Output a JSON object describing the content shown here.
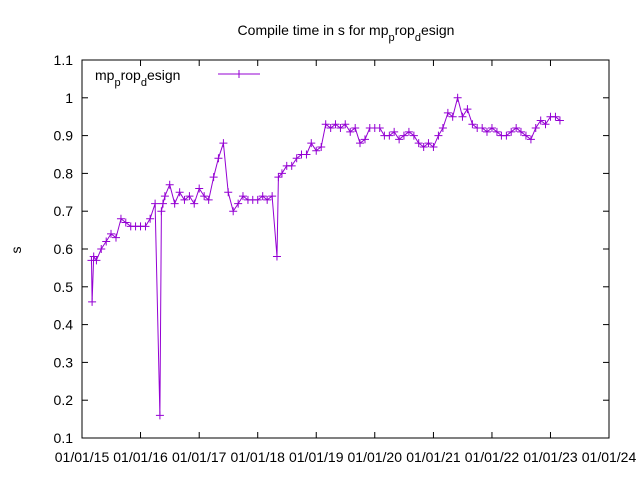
{
  "chart_data": {
    "type": "line",
    "title": "Compile time in s for mp_prop_design",
    "title_parts": [
      "Compile time in s for mp",
      "p",
      "rop",
      "d",
      "esign"
    ],
    "xlabel": "",
    "ylabel": "s",
    "xlim": [
      "2015-01-01",
      "2024-01-01"
    ],
    "ylim": [
      0.1,
      1.1
    ],
    "x_ticks": [
      "01/01/15",
      "01/01/16",
      "01/01/17",
      "01/01/18",
      "01/01/19",
      "01/01/20",
      "01/01/21",
      "01/01/22",
      "01/01/23",
      "01/01/24"
    ],
    "y_ticks": [
      "0.1",
      "0.2",
      "0.3",
      "0.4",
      "0.5",
      "0.6",
      "0.7",
      "0.8",
      "0.9",
      "1",
      "1.1"
    ],
    "grid": false,
    "legend_position": "top-left",
    "series": [
      {
        "name": "mp_prop_design",
        "legend_parts": [
          "mp",
          "p",
          "rop",
          "d",
          "esign"
        ],
        "color": "#9400d3",
        "marker": "plus",
        "x": [
          "2015-03-01",
          "2015-03-05",
          "2015-03-15",
          "2015-04-01",
          "2015-05-01",
          "2015-06-01",
          "2015-07-01",
          "2015-08-01",
          "2015-09-01",
          "2015-10-01",
          "2015-11-01",
          "2015-12-01",
          "2016-01-01",
          "2016-02-01",
          "2016-03-01",
          "2016-04-01",
          "2016-05-01",
          "2016-05-10",
          "2016-05-20",
          "2016-06-01",
          "2016-07-01",
          "2016-08-01",
          "2016-09-01",
          "2016-10-01",
          "2016-11-01",
          "2016-12-01",
          "2017-01-01",
          "2017-02-01",
          "2017-03-01",
          "2017-04-01",
          "2017-05-01",
          "2017-06-01",
          "2017-07-01",
          "2017-08-01",
          "2017-09-01",
          "2017-10-01",
          "2017-11-01",
          "2017-12-01",
          "2018-01-01",
          "2018-02-01",
          "2018-03-01",
          "2018-04-01",
          "2018-05-01",
          "2018-05-10",
          "2018-06-01",
          "2018-07-01",
          "2018-08-01",
          "2018-09-01",
          "2018-10-01",
          "2018-11-01",
          "2018-12-01",
          "2019-01-01",
          "2019-02-01",
          "2019-03-01",
          "2019-04-01",
          "2019-05-01",
          "2019-06-01",
          "2019-07-01",
          "2019-08-01",
          "2019-09-01",
          "2019-10-01",
          "2019-11-01",
          "2019-12-01",
          "2020-01-01",
          "2020-02-01",
          "2020-03-01",
          "2020-04-01",
          "2020-05-01",
          "2020-06-01",
          "2020-07-01",
          "2020-08-01",
          "2020-09-01",
          "2020-10-01",
          "2020-11-01",
          "2020-12-01",
          "2021-01-01",
          "2021-02-01",
          "2021-03-01",
          "2021-04-01",
          "2021-05-01",
          "2021-06-01",
          "2021-07-01",
          "2021-08-01",
          "2021-09-01",
          "2021-10-01",
          "2021-11-01",
          "2021-12-01",
          "2022-01-01",
          "2022-02-01",
          "2022-03-01",
          "2022-04-01",
          "2022-05-01",
          "2022-06-01",
          "2022-07-01",
          "2022-08-01",
          "2022-09-01",
          "2022-10-01",
          "2022-11-01",
          "2022-12-01",
          "2023-01-01",
          "2023-02-01",
          "2023-03-01"
        ],
        "y": [
          0.57,
          0.46,
          0.58,
          0.57,
          0.6,
          0.62,
          0.64,
          0.63,
          0.68,
          0.67,
          0.66,
          0.66,
          0.66,
          0.66,
          0.68,
          0.72,
          0.16,
          0.7,
          0.72,
          0.74,
          0.77,
          0.72,
          0.75,
          0.73,
          0.74,
          0.72,
          0.76,
          0.74,
          0.73,
          0.79,
          0.84,
          0.88,
          0.75,
          0.7,
          0.72,
          0.74,
          0.73,
          0.73,
          0.73,
          0.74,
          0.73,
          0.74,
          0.58,
          0.79,
          0.8,
          0.82,
          0.82,
          0.84,
          0.85,
          0.85,
          0.88,
          0.86,
          0.87,
          0.93,
          0.92,
          0.93,
          0.92,
          0.93,
          0.91,
          0.92,
          0.88,
          0.89,
          0.92,
          0.92,
          0.92,
          0.9,
          0.9,
          0.91,
          0.89,
          0.9,
          0.91,
          0.9,
          0.88,
          0.87,
          0.88,
          0.87,
          0.9,
          0.92,
          0.96,
          0.95,
          1.0,
          0.95,
          0.97,
          0.93,
          0.92,
          0.92,
          0.91,
          0.92,
          0.91,
          0.9,
          0.9,
          0.91,
          0.92,
          0.91,
          0.9,
          0.89,
          0.92,
          0.94,
          0.93,
          0.95,
          0.95,
          0.94
        ]
      }
    ]
  }
}
